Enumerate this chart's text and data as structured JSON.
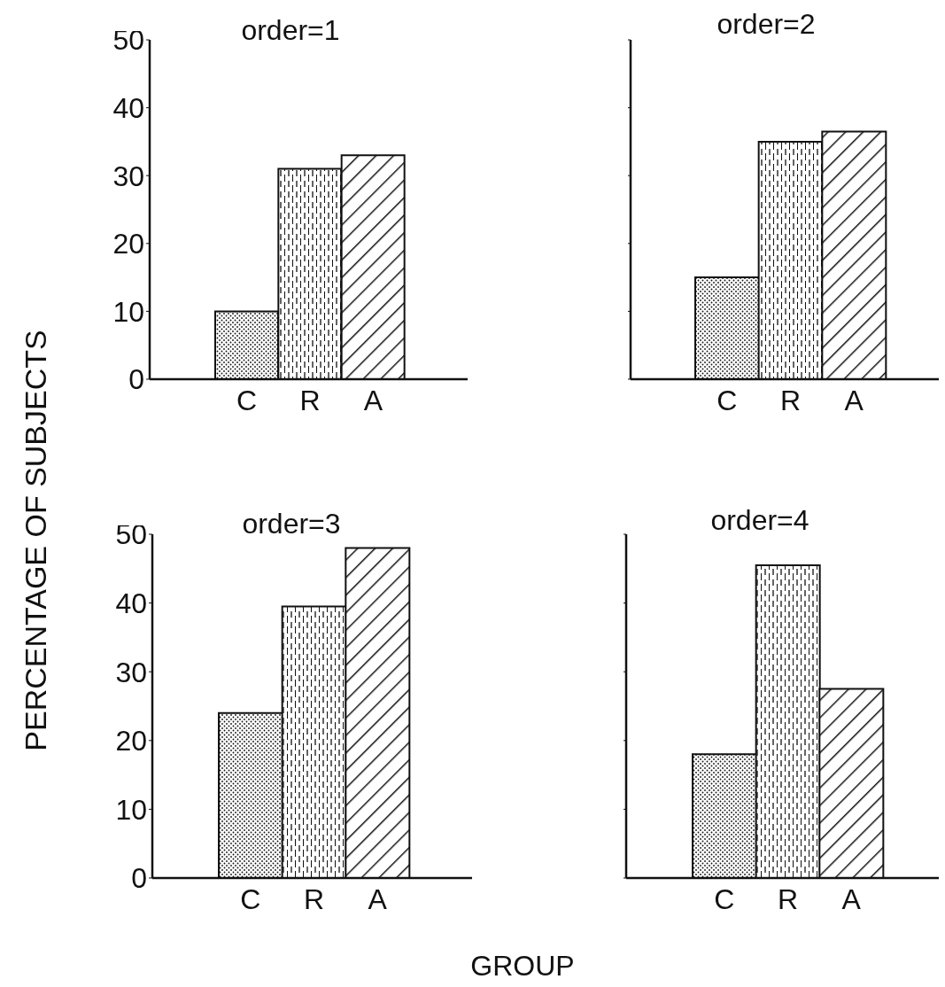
{
  "chart_data": [
    {
      "type": "bar",
      "title": "order=1",
      "ylabel": "PERCENTAGE OF SUBJECTS",
      "categories": [
        "C",
        "R",
        "A"
      ],
      "values": [
        10,
        31,
        33
      ],
      "ylim": [
        0,
        50
      ],
      "yticks": [
        0,
        10,
        20,
        30,
        40,
        50
      ],
      "grid": false,
      "legend": false
    },
    {
      "type": "bar",
      "title": "order=2",
      "categories": [
        "C",
        "R",
        "A"
      ],
      "values": [
        15,
        35,
        36.5
      ],
      "ylim": [
        0,
        50
      ],
      "yticks": [
        {
          "value": 0,
          "label": null
        },
        {
          "value": 10,
          "label": null
        },
        {
          "value": 20,
          "label": null
        },
        {
          "value": 30,
          "label": null
        },
        {
          "value": 40,
          "label": null
        },
        {
          "value": 50,
          "label": null
        }
      ],
      "tick_labels": "x",
      "grid": false,
      "legend": false
    },
    {
      "type": "bar",
      "title": "order=3",
      "xlabel": "GROUP",
      "categories": [
        "C",
        "R",
        "A"
      ],
      "values": [
        24,
        39.5,
        48
      ],
      "ylim": [
        0,
        50
      ],
      "yticks": [
        0,
        10,
        20,
        30,
        40,
        50
      ],
      "grid": false,
      "legend": false
    },
    {
      "type": "bar",
      "title": "order=4",
      "categories": [
        "C",
        "R",
        "A"
      ],
      "values": [
        18,
        45.5,
        27.5
      ],
      "ylim": [
        0,
        50
      ],
      "yticks": [
        {
          "value": 0,
          "label": null
        },
        {
          "value": 10,
          "label": null
        },
        {
          "value": 20,
          "label": null
        },
        {
          "value": 30,
          "label": null
        },
        {
          "value": 40,
          "label": null
        },
        {
          "value": 50,
          "label": null
        }
      ],
      "tick_labels": "x",
      "grid": false,
      "legend": false
    }
  ]
}
